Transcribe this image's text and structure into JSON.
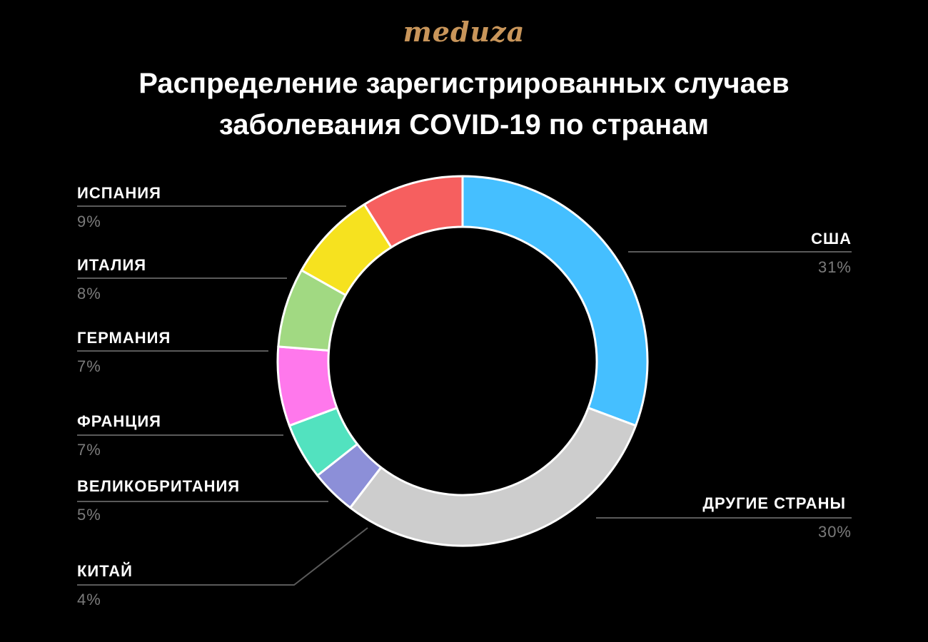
{
  "logo": "meduza",
  "title": {
    "line1": "Распределение зарегистрированных случаев",
    "line2": "заболевания COVID-19 по странам"
  },
  "colors": {
    "background": "#000000",
    "logo": "#c8955a",
    "label": "#ffffff",
    "value": "#7b7b7b",
    "leader": "#5a5a5a",
    "separator": "#ffffff"
  },
  "chart_data": {
    "type": "pie",
    "style": "donut",
    "start_angle_deg": 0,
    "direction": "clockwise from 12 o'clock",
    "slices": [
      {
        "label": "США",
        "value": 31,
        "display": "31%",
        "color": "#45bfff",
        "side": "right"
      },
      {
        "label": "ДРУГИЕ СТРАНЫ",
        "value": 30,
        "display": "30%",
        "color": "#cdcdcd",
        "side": "right"
      },
      {
        "label": "КИТАЙ",
        "value": 4,
        "display": "4%",
        "color": "#8c8fd8",
        "side": "left"
      },
      {
        "label": "ВЕЛИКОБРИТАНИЯ",
        "value": 5,
        "display": "5%",
        "color": "#52e2bf",
        "side": "left"
      },
      {
        "label": "ФРАНЦИЯ",
        "value": 7,
        "display": "7%",
        "color": "#ff78ec",
        "side": "left"
      },
      {
        "label": "ГЕРМАНИЯ",
        "value": 7,
        "display": "7%",
        "color": "#a1d982",
        "side": "left"
      },
      {
        "label": "ИТАЛИЯ",
        "value": 8,
        "display": "8%",
        "color": "#f6e21f",
        "side": "left"
      },
      {
        "label": "ИСПАНИЯ",
        "value": 9,
        "display": "9%",
        "color": "#f65f5f",
        "side": "left"
      }
    ]
  }
}
